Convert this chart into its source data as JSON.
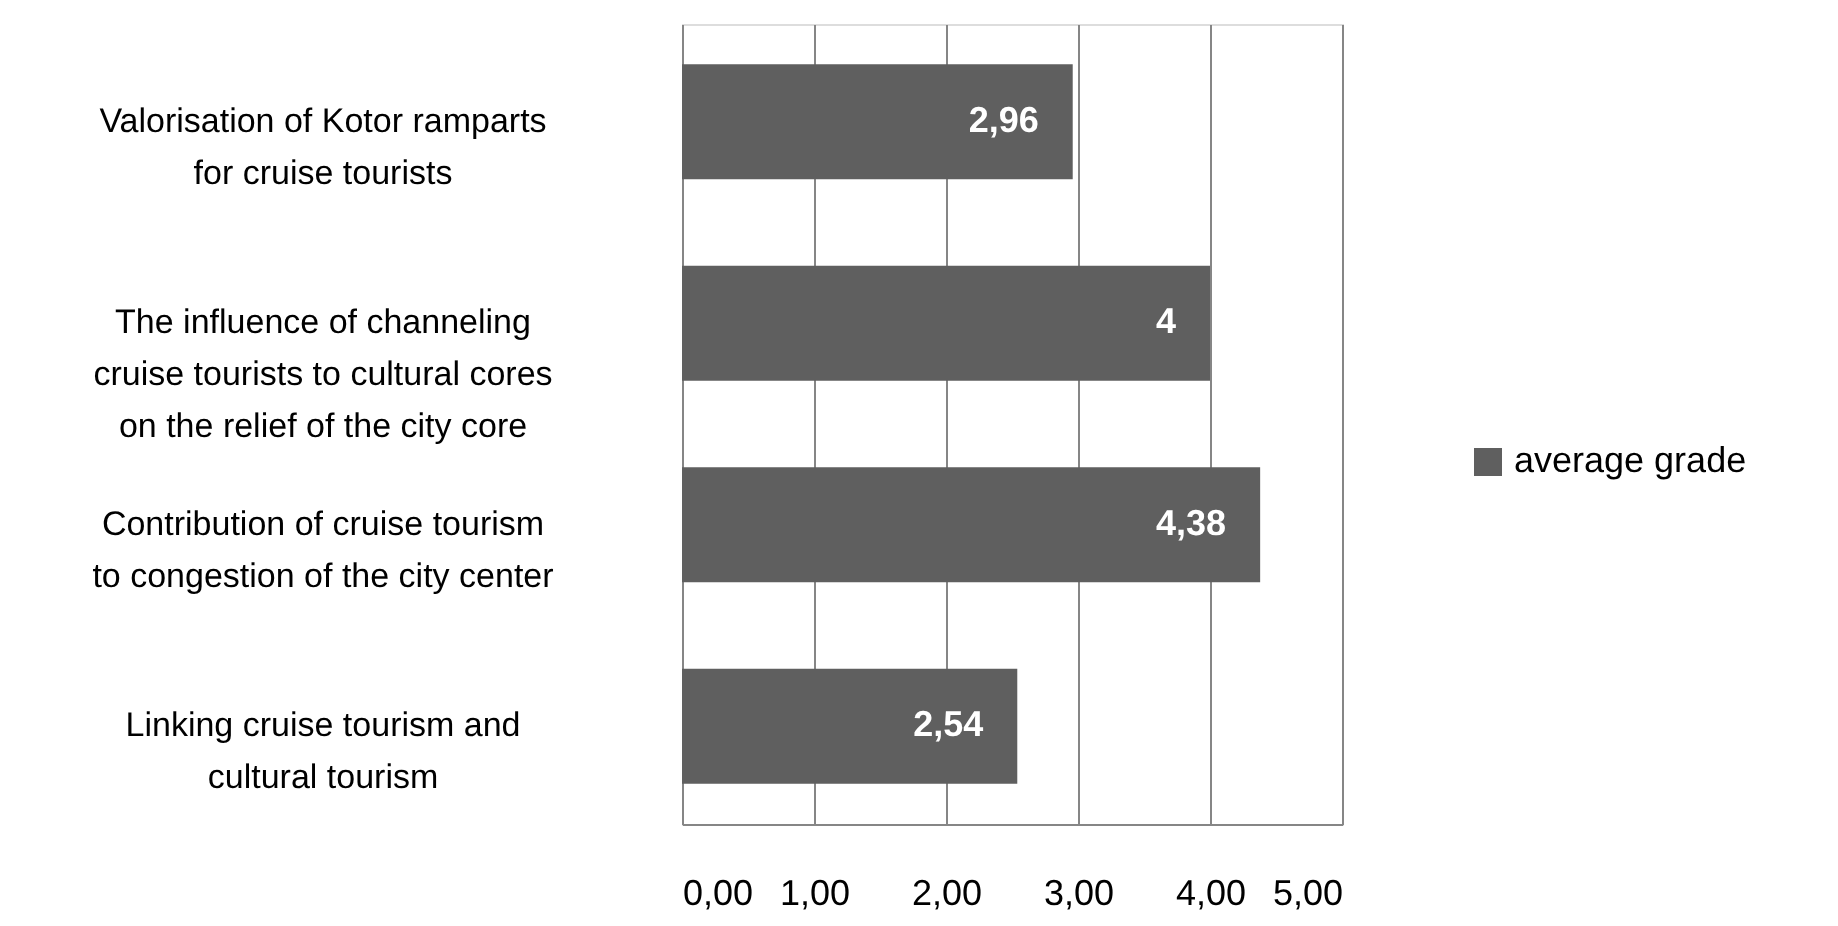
{
  "chart_data": {
    "type": "bar",
    "orientation": "horizontal",
    "categories": [
      "Valorisation of Kotor ramparts\nfor cruise tourists",
      "The influence of channeling\ncruise tourists to cultural cores\non the relief of the city core",
      "Contribution of cruise tourism\nto  congestion of the city center",
      "Linking cruise tourism and\ncultural tourism"
    ],
    "series": [
      {
        "name": "average grade",
        "color": "#5f5f5f",
        "values": [
          2.96,
          4,
          4.38,
          2.54
        ],
        "value_labels": [
          "2,96",
          "4",
          "4,38",
          "2,54"
        ]
      }
    ],
    "xlim": [
      0,
      5
    ],
    "xticks": [
      {
        "value": 0,
        "label": "0,00"
      },
      {
        "value": 1,
        "label": "1,00"
      },
      {
        "value": 2,
        "label": "2,00"
      },
      {
        "value": 3,
        "label": "3,00"
      },
      {
        "value": 4,
        "label": "4,00"
      },
      {
        "value": 5,
        "label": "5,00"
      }
    ],
    "grid": "x",
    "legend": "right"
  }
}
